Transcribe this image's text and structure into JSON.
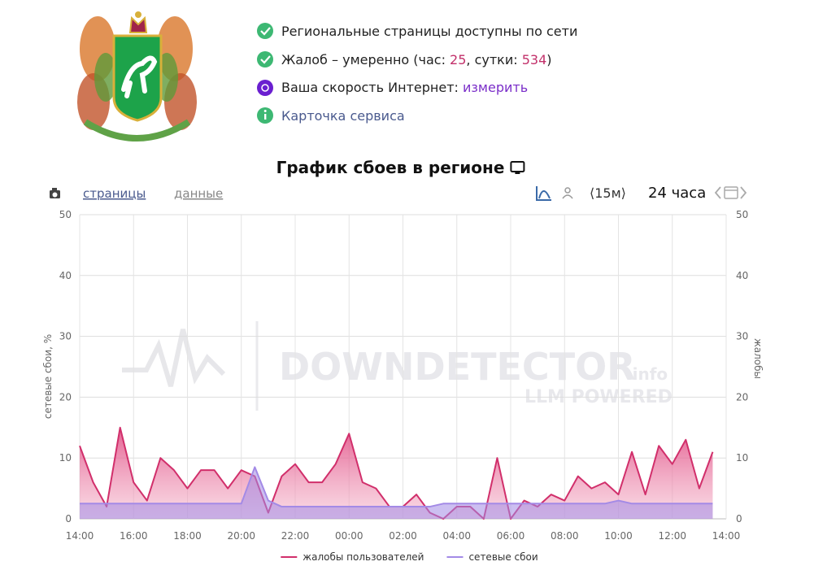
{
  "status": {
    "network": "Региональные страницы доступны по сети",
    "complaints": {
      "prefix": "Жалоб – умеренно (час: ",
      "hour": 25,
      "middle": ", сутки: ",
      "day": 534,
      "suffix": ")"
    },
    "speed": {
      "text": "Ваша скорость Интернет: ",
      "link": "измерить"
    },
    "card": "Карточка сервиса"
  },
  "toolbar": {
    "tab_pages": "страницы",
    "tab_data": "данные",
    "interval": "⟨15м⟩",
    "period": "24 часа"
  },
  "chart_data": {
    "type": "area",
    "title": "График сбоев в регионе",
    "watermark": "DOWNDETECTOR",
    "watermark_suffix": ".info",
    "watermark_sub": "LLM POWERED",
    "ylabel": "сетевые сбои, %",
    "y2label": "жалобы",
    "xlim": [
      0,
      24
    ],
    "xticks": [
      {
        "value": 0,
        "label": "14:00"
      },
      {
        "value": 2,
        "label": "16:00"
      },
      {
        "value": 4,
        "label": "18:00"
      },
      {
        "value": 6,
        "label": "20:00"
      },
      {
        "value": 8,
        "label": "22:00"
      },
      {
        "value": 10,
        "label": "00:00"
      },
      {
        "value": 12,
        "label": "02:00"
      },
      {
        "value": 14,
        "label": "04:00"
      },
      {
        "value": 16,
        "label": "06:00"
      },
      {
        "value": 18,
        "label": "08:00"
      },
      {
        "value": 20,
        "label": "10:00"
      },
      {
        "value": 22,
        "label": "12:00"
      },
      {
        "value": 24,
        "label": "14:00"
      }
    ],
    "ylim": [
      0,
      50
    ],
    "yticks": [
      0,
      10,
      20,
      30,
      40,
      50
    ],
    "y2lim": [
      0,
      50
    ],
    "y2ticks": [
      0,
      10,
      20,
      30,
      40,
      50
    ],
    "grid": true,
    "legend": "bottom",
    "x": [
      0,
      0.5,
      1,
      1.5,
      2,
      2.5,
      3,
      3.5,
      4,
      4.5,
      5,
      5.5,
      6,
      6.5,
      7,
      7.5,
      8,
      8.5,
      9,
      9.5,
      10,
      10.5,
      11,
      11.5,
      12,
      12.5,
      13,
      13.5,
      14,
      14.5,
      15,
      15.5,
      16,
      16.5,
      17,
      17.5,
      18,
      18.5,
      19,
      19.5,
      20,
      20.5,
      21,
      21.5,
      22,
      22.5,
      23,
      23.5
    ],
    "series": [
      {
        "name": "жалобы пользователей",
        "color": "#d12f6b",
        "axis": "y2",
        "values": [
          12,
          6,
          2,
          15,
          6,
          3,
          10,
          8,
          5,
          8,
          8,
          5,
          8,
          7,
          1,
          7,
          9,
          6,
          6,
          9,
          14,
          6,
          5,
          2,
          2,
          4,
          1,
          0,
          2,
          2,
          0,
          10,
          0,
          3,
          2,
          4,
          3,
          7,
          5,
          6,
          4,
          11,
          4,
          12,
          9,
          13,
          5,
          11
        ]
      },
      {
        "name": "сетевые сбои",
        "color": "#a38ae6",
        "values": [
          2.5,
          2.5,
          2.5,
          2.5,
          2.5,
          2.5,
          2.5,
          2.5,
          2.5,
          2.5,
          2.5,
          2.5,
          2.5,
          8.5,
          3,
          2,
          2,
          2,
          2,
          2,
          2,
          2,
          2,
          2,
          2,
          2,
          2,
          2.5,
          2.5,
          2.5,
          2.5,
          2.5,
          2.5,
          2.5,
          2.5,
          2.5,
          2.5,
          2.5,
          2.5,
          2.5,
          3,
          2.5,
          2.5,
          2.5,
          2.5,
          2.5,
          2.5,
          2.5
        ]
      }
    ]
  }
}
